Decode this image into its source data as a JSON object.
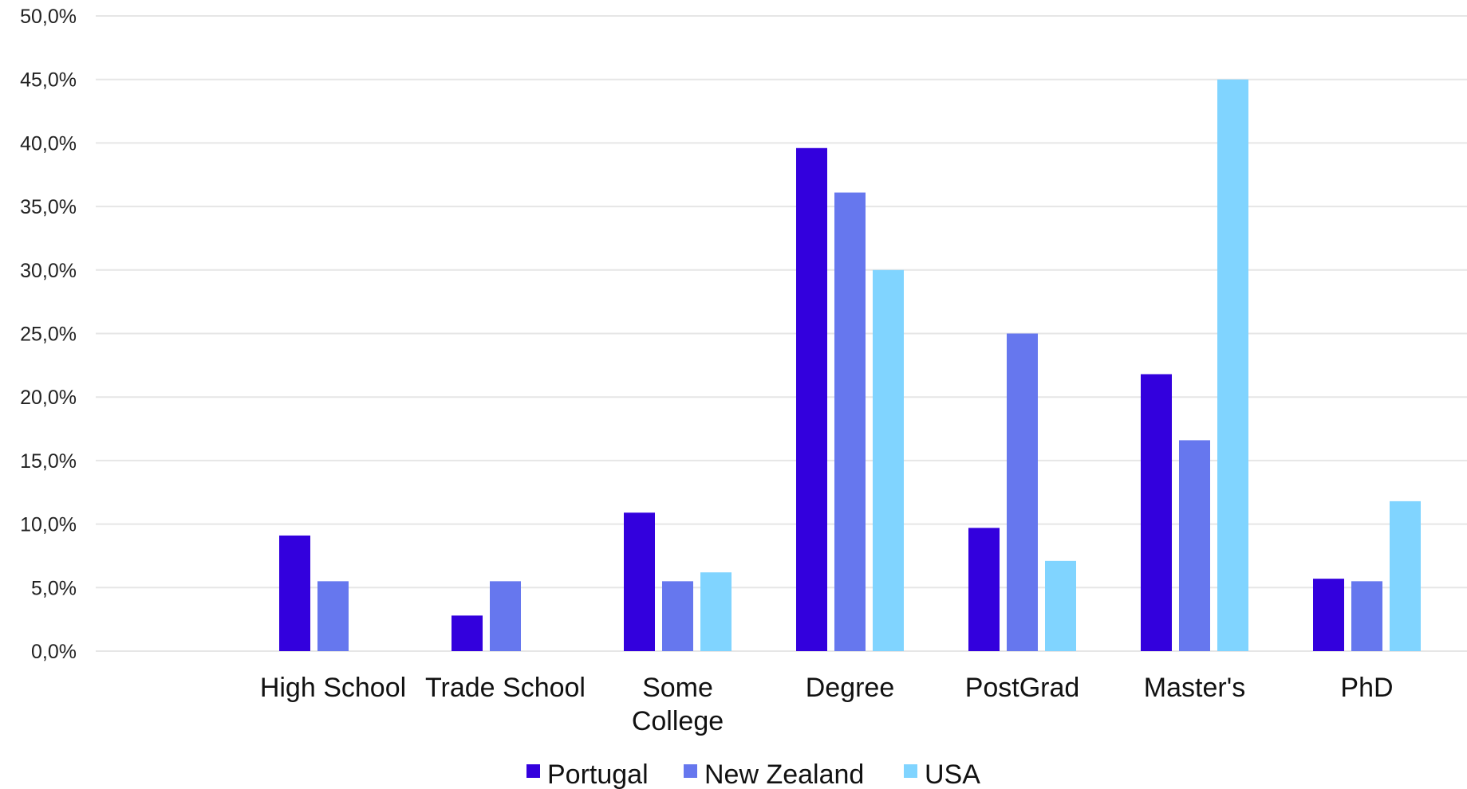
{
  "chart_data": {
    "type": "bar",
    "title": "",
    "xlabel": "",
    "ylabel": "",
    "categories": [
      "High School",
      "Trade School",
      "Some College",
      "Degree",
      "PostGrad",
      "Master's",
      "PhD"
    ],
    "category_labels": [
      [
        "High School"
      ],
      [
        "Trade School"
      ],
      [
        "Some",
        "College"
      ],
      [
        "Degree"
      ],
      [
        "PostGrad"
      ],
      [
        "Master's"
      ],
      [
        "PhD"
      ]
    ],
    "series": [
      {
        "name": "Portugal",
        "color": "#3300dd",
        "values": [
          9.1,
          2.8,
          10.9,
          39.6,
          9.7,
          21.8,
          5.7
        ]
      },
      {
        "name": "New Zealand",
        "color": "#6677ee",
        "values": [
          5.5,
          5.5,
          5.5,
          36.1,
          25.0,
          16.6,
          5.5
        ]
      },
      {
        "name": "USA",
        "color": "#80d4ff",
        "values": [
          null,
          null,
          6.2,
          30.0,
          7.1,
          45.0,
          11.8
        ]
      }
    ],
    "ylim": [
      0,
      50
    ],
    "yticks": [
      0,
      5,
      10,
      15,
      20,
      25,
      30,
      35,
      40,
      45,
      50
    ],
    "ytick_labels": [
      "0,0%",
      "5,0%",
      "10,0%",
      "15,0%",
      "20,0%",
      "25,0%",
      "30,0%",
      "35,0%",
      "40,0%",
      "45,0%",
      "50,0%"
    ],
    "grid": true,
    "gridline_color": "#e6e6e6",
    "legend_position": "bottom"
  }
}
